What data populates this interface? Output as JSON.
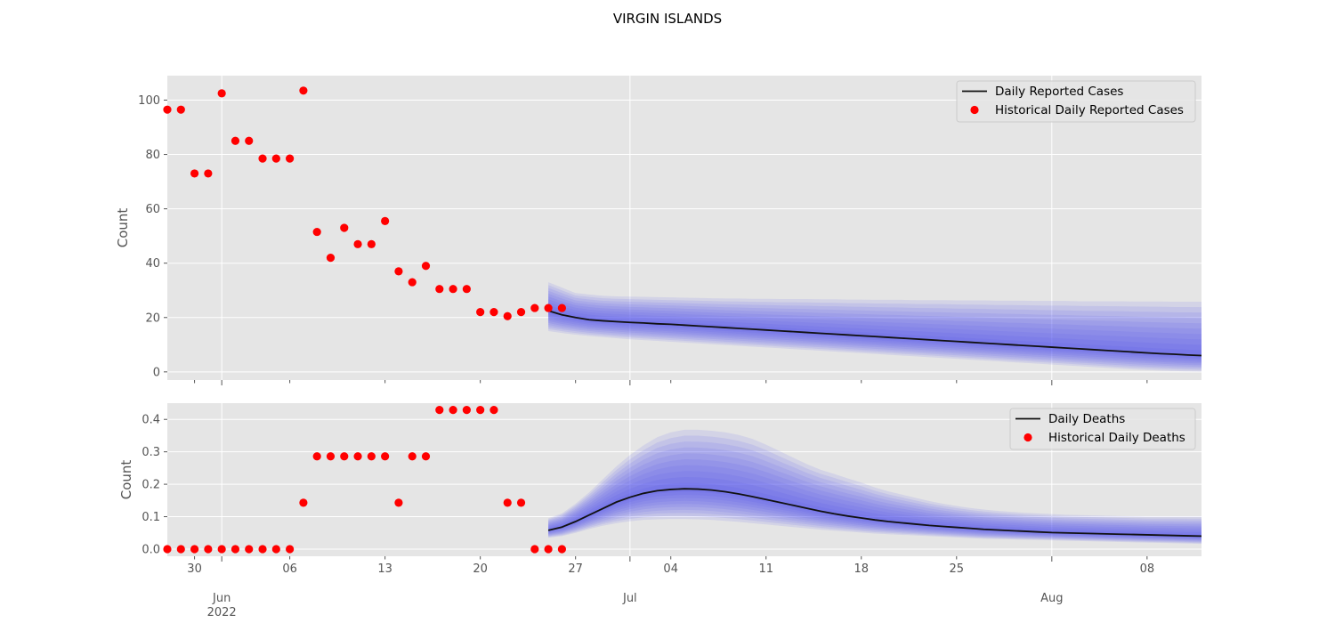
{
  "figure": {
    "title": "VIRGIN ISLANDS"
  },
  "chart_data": [
    {
      "type": "line",
      "ylabel": "Count",
      "ylim": [
        -3,
        109
      ],
      "yticks": [
        0,
        20,
        40,
        60,
        80,
        100
      ],
      "xlim": [
        "2022-05-28",
        "2022-08-12"
      ],
      "grid": true,
      "legend": {
        "placement": "top-right",
        "entries": [
          "Daily Reported Cases",
          "Historical Daily Reported Cases"
        ]
      },
      "historical": {
        "name": "Historical Daily Reported Cases",
        "start": "2022-05-28",
        "values": [
          96.5,
          96.5,
          73,
          73,
          102.5,
          85,
          85,
          78.5,
          78.5,
          78.5,
          103.5,
          51.5,
          42,
          53,
          47,
          47,
          55.5,
          37,
          33,
          39,
          30.5,
          30.5,
          30.5,
          22,
          22,
          20.5,
          22,
          23.5,
          23.5,
          23.5
        ]
      },
      "forecast": {
        "name": "Daily Reported Cases",
        "start": "2022-06-25",
        "median": [
          22.5,
          21,
          20,
          19.2,
          18.8,
          18.5,
          18.2,
          18,
          17.7,
          17.5,
          17.2,
          16.9,
          16.6,
          16.3,
          16,
          15.7,
          15.4,
          15.1,
          14.8,
          14.5,
          14.2,
          13.9,
          13.6,
          13.3,
          13,
          12.7,
          12.4,
          12.1,
          11.8,
          11.5,
          11.2,
          10.9,
          10.6,
          10.3,
          10,
          9.7,
          9.4,
          9.1,
          8.8,
          8.5,
          8.2,
          7.9,
          7.6,
          7.3,
          7,
          6.7,
          6.5,
          6.2,
          6
        ],
        "upper": [
          33,
          31,
          29,
          28.5,
          28,
          27.8,
          27.7,
          27.6,
          27.5,
          27.4,
          27.3,
          27.2,
          27.1,
          27,
          27,
          26.9,
          26.9,
          26.8,
          26.8,
          26.8,
          26.7,
          26.7,
          26.6,
          26.6,
          26.5,
          26.5,
          26.5,
          26.4,
          26.4,
          26.4,
          26.3,
          26.3,
          26.3,
          26.2,
          26.2,
          26.2,
          26.1,
          26.1,
          26.1,
          26,
          26,
          26,
          26,
          25.9,
          25.9,
          25.9,
          25.8,
          25.8,
          25.8
        ],
        "lower": [
          15,
          14.3,
          13.7,
          13.2,
          12.8,
          12.4,
          12,
          11.7,
          11.4,
          11.1,
          10.8,
          10.5,
          10.2,
          9.9,
          9.6,
          9.3,
          9,
          8.7,
          8.4,
          8.1,
          7.8,
          7.5,
          7.2,
          6.9,
          6.6,
          6.3,
          6,
          5.7,
          5.4,
          5.1,
          4.8,
          4.5,
          4.2,
          3.9,
          3.6,
          3.3,
          3,
          2.7,
          2.4,
          2.1,
          1.8,
          1.5,
          1.2,
          0.9,
          0.7,
          0.5,
          0.3,
          0.2,
          0.1
        ]
      }
    },
    {
      "type": "line",
      "ylabel": "Count",
      "ylim": [
        -0.022,
        0.45
      ],
      "yticks": [
        0.0,
        0.1,
        0.2,
        0.3,
        0.4
      ],
      "ytick_labels": [
        "0.0",
        "0.1",
        "0.2",
        "0.3",
        "0.4"
      ],
      "xlim": [
        "2022-05-28",
        "2022-08-12"
      ],
      "grid": true,
      "legend": {
        "placement": "top-right",
        "entries": [
          "Daily Deaths",
          "Historical Daily Deaths"
        ]
      },
      "historical": {
        "name": "Historical Daily Deaths",
        "start": "2022-05-28",
        "values": [
          0,
          0,
          0,
          0,
          0,
          0,
          0,
          0,
          0,
          0,
          0.143,
          0.286,
          0.286,
          0.286,
          0.286,
          0.286,
          0.286,
          0.143,
          0.286,
          0.286,
          0.429,
          0.429,
          0.429,
          0.429,
          0.429,
          0.143,
          0.143,
          0,
          0,
          0
        ]
      },
      "forecast": {
        "name": "Daily Deaths",
        "start": "2022-06-25",
        "median": [
          0.058,
          0.068,
          0.085,
          0.105,
          0.125,
          0.145,
          0.16,
          0.172,
          0.18,
          0.184,
          0.186,
          0.185,
          0.182,
          0.177,
          0.17,
          0.162,
          0.153,
          0.144,
          0.135,
          0.126,
          0.117,
          0.109,
          0.102,
          0.096,
          0.09,
          0.085,
          0.081,
          0.077,
          0.073,
          0.07,
          0.067,
          0.064,
          0.061,
          0.059,
          0.057,
          0.055,
          0.053,
          0.051,
          0.05,
          0.049,
          0.048,
          0.047,
          0.046,
          0.045,
          0.044,
          0.043,
          0.042,
          0.041,
          0.04
        ],
        "upper": [
          0.095,
          0.11,
          0.14,
          0.175,
          0.215,
          0.255,
          0.29,
          0.32,
          0.345,
          0.36,
          0.368,
          0.368,
          0.365,
          0.36,
          0.352,
          0.34,
          0.322,
          0.302,
          0.282,
          0.262,
          0.245,
          0.232,
          0.218,
          0.205,
          0.19,
          0.178,
          0.168,
          0.158,
          0.148,
          0.14,
          0.133,
          0.127,
          0.122,
          0.118,
          0.115,
          0.112,
          0.11,
          0.108,
          0.106,
          0.105,
          0.104,
          0.103,
          0.102,
          0.101,
          0.1,
          0.1,
          0.1,
          0.1,
          0.1
        ],
        "lower": [
          0.035,
          0.04,
          0.05,
          0.062,
          0.072,
          0.08,
          0.086,
          0.09,
          0.092,
          0.093,
          0.093,
          0.092,
          0.09,
          0.087,
          0.084,
          0.08,
          0.076,
          0.072,
          0.068,
          0.064,
          0.06,
          0.057,
          0.054,
          0.051,
          0.048,
          0.046,
          0.044,
          0.042,
          0.04,
          0.038,
          0.036,
          0.034,
          0.032,
          0.031,
          0.03,
          0.029,
          0.028,
          0.027,
          0.026,
          0.025,
          0.024,
          0.023,
          0.022,
          0.021,
          0.02,
          0.019,
          0.018,
          0.017,
          0.016
        ]
      }
    }
  ],
  "xaxis": {
    "minor_ticks": [
      {
        "date": "2022-05-30",
        "label": "30"
      },
      {
        "date": "2022-06-06",
        "label": "06"
      },
      {
        "date": "2022-06-13",
        "label": "13"
      },
      {
        "date": "2022-06-20",
        "label": "20"
      },
      {
        "date": "2022-06-27",
        "label": "27"
      },
      {
        "date": "2022-07-04",
        "label": "04"
      },
      {
        "date": "2022-07-11",
        "label": "11"
      },
      {
        "date": "2022-07-18",
        "label": "18"
      },
      {
        "date": "2022-07-25",
        "label": "25"
      },
      {
        "date": "2022-08-08",
        "label": "08"
      }
    ],
    "major_ticks": [
      {
        "date": "2022-06-01",
        "label": "Jun",
        "sublabel": "2022"
      },
      {
        "date": "2022-07-01",
        "label": "Jul",
        "sublabel": ""
      },
      {
        "date": "2022-08-01",
        "label": "Aug",
        "sublabel": ""
      }
    ]
  },
  "colors": {
    "panel": "#e5e5e5",
    "grid": "#ffffff",
    "band": "#5555ee",
    "median": "#111111",
    "points": "#ff0000",
    "legend_bg": "#e5e5e5",
    "legend_border": "#cccccc"
  }
}
